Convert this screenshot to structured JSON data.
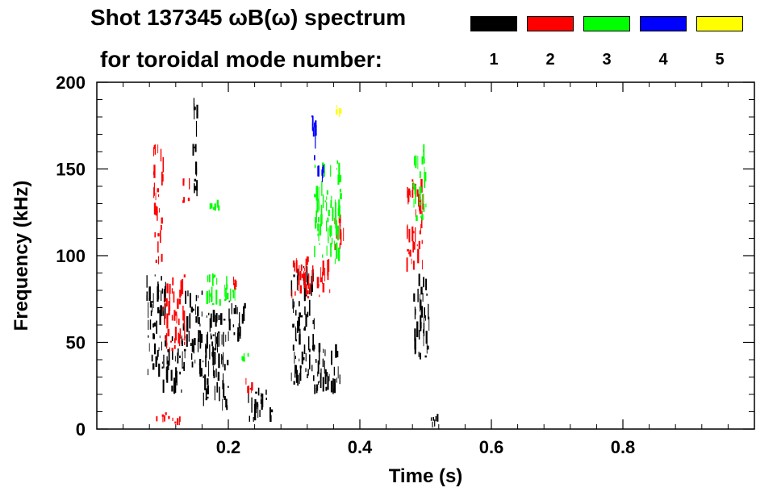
{
  "chart_data": {
    "type": "scatter",
    "title": "Shot 137345 ωB(ω) spectrum",
    "subtitle": "for toroidal mode number:",
    "xlabel": "Time (s)",
    "ylabel": "Frequency (kHz)",
    "xlim": [
      0.0,
      1.0
    ],
    "ylim": [
      0,
      200
    ],
    "x_ticks": [
      0.2,
      0.4,
      0.6,
      0.8
    ],
    "x_tick_labels": [
      "0.2",
      "0.4",
      "0.6",
      "0.8"
    ],
    "y_ticks": [
      0,
      50,
      100,
      150,
      200
    ],
    "y_tick_labels": [
      "0",
      "50",
      "100",
      "150",
      "200"
    ],
    "legend": [
      {
        "label": "1",
        "color": "#000000"
      },
      {
        "label": "2",
        "color": "#ff0000"
      },
      {
        "label": "3",
        "color": "#00ff00"
      },
      {
        "label": "4",
        "color": "#0000ff"
      },
      {
        "label": "5",
        "color": "#ffff00"
      }
    ],
    "series": [
      {
        "name": "1",
        "color": "#000000",
        "regions": [
          {
            "t": [
              0.075,
              0.105
            ],
            "f": [
              30,
              90
            ]
          },
          {
            "t": [
              0.1,
              0.13
            ],
            "f": [
              20,
              55
            ]
          },
          {
            "t": [
              0.13,
              0.16
            ],
            "f": [
              30,
              80
            ]
          },
          {
            "t": [
              0.16,
              0.2
            ],
            "f": [
              10,
              70
            ]
          },
          {
            "t": [
              0.2,
              0.225
            ],
            "f": [
              50,
              75
            ]
          },
          {
            "t": [
              0.225,
              0.265
            ],
            "f": [
              3,
              25
            ]
          },
          {
            "t": [
              0.295,
              0.33
            ],
            "f": [
              25,
              95
            ]
          },
          {
            "t": [
              0.33,
              0.37
            ],
            "f": [
              20,
              50
            ]
          },
          {
            "t": [
              0.48,
              0.505
            ],
            "f": [
              40,
              90
            ]
          },
          {
            "t": [
              0.5,
              0.52
            ],
            "f": [
              0,
              10
            ]
          },
          {
            "t": [
              0.145,
              0.152
            ],
            "f": [
              120,
              195
            ]
          }
        ]
      },
      {
        "name": "2",
        "color": "#ff0000",
        "regions": [
          {
            "t": [
              0.085,
              0.1
            ],
            "f": [
              95,
              165
            ]
          },
          {
            "t": [
              0.1,
              0.135
            ],
            "f": [
              45,
              90
            ]
          },
          {
            "t": [
              0.13,
              0.14
            ],
            "f": [
              130,
              145
            ]
          },
          {
            "t": [
              0.205,
              0.21
            ],
            "f": [
              80,
              88
            ]
          },
          {
            "t": [
              0.225,
              0.235
            ],
            "f": [
              18,
              30
            ]
          },
          {
            "t": [
              0.295,
              0.355
            ],
            "f": [
              75,
              100
            ]
          },
          {
            "t": [
              0.36,
              0.375
            ],
            "f": [
              100,
              125
            ]
          },
          {
            "t": [
              0.47,
              0.495
            ],
            "f": [
              90,
              150
            ]
          },
          {
            "t": [
              0.085,
              0.13
            ],
            "f": [
              2,
              10
            ]
          }
        ]
      },
      {
        "name": "3",
        "color": "#00ff00",
        "regions": [
          {
            "t": [
              0.165,
              0.21
            ],
            "f": [
              70,
              90
            ]
          },
          {
            "t": [
              0.17,
              0.185
            ],
            "f": [
              125,
              135
            ]
          },
          {
            "t": [
              0.33,
              0.37
            ],
            "f": [
              95,
              155
            ]
          },
          {
            "t": [
              0.48,
              0.5
            ],
            "f": [
              120,
              165
            ]
          },
          {
            "t": [
              0.22,
              0.23
            ],
            "f": [
              38,
              45
            ]
          }
        ]
      },
      {
        "name": "4",
        "color": "#0000ff",
        "regions": [
          {
            "t": [
              0.325,
              0.335
            ],
            "f": [
              155,
              185
            ]
          },
          {
            "t": [
              0.335,
              0.345
            ],
            "f": [
              140,
              155
            ]
          }
        ]
      },
      {
        "name": "5",
        "color": "#ffff00",
        "regions": [
          {
            "t": [
              0.36,
              0.37
            ],
            "f": [
              180,
              190
            ]
          }
        ]
      }
    ]
  }
}
